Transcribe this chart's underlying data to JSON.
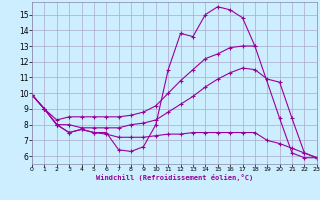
{
  "xlabel": "Windchill (Refroidissement éolien,°C)",
  "bg_color": "#cceeff",
  "grid_color": "#aaaacc",
  "line_color": "#990099",
  "xlim": [
    0,
    23
  ],
  "ylim": [
    5.5,
    15.8
  ],
  "xticks": [
    0,
    1,
    2,
    3,
    4,
    5,
    6,
    7,
    8,
    9,
    10,
    11,
    12,
    13,
    14,
    15,
    16,
    17,
    18,
    19,
    20,
    21,
    22,
    23
  ],
  "yticks": [
    6,
    7,
    8,
    9,
    10,
    11,
    12,
    13,
    14,
    15
  ],
  "series": [
    {
      "x": [
        0,
        1,
        2,
        3,
        4,
        5,
        6,
        7,
        8,
        9,
        10,
        11,
        12,
        13,
        14,
        15,
        16,
        17,
        18,
        20,
        21,
        22,
        23
      ],
      "y": [
        9.9,
        9.0,
        8.0,
        7.5,
        7.7,
        7.5,
        7.5,
        6.4,
        6.3,
        6.6,
        8.0,
        11.5,
        13.8,
        13.6,
        15.0,
        15.5,
        15.3,
        14.8,
        13.0,
        8.4,
        6.2,
        5.9,
        5.9
      ]
    },
    {
      "x": [
        0,
        1,
        2,
        3,
        4,
        5,
        6,
        7,
        8,
        9,
        10,
        11,
        12,
        13,
        14,
        15,
        16,
        17,
        18
      ],
      "y": [
        9.9,
        9.0,
        8.3,
        8.5,
        8.5,
        8.5,
        8.5,
        8.5,
        8.6,
        8.8,
        9.2,
        10.0,
        10.8,
        11.5,
        12.2,
        12.5,
        12.9,
        13.0,
        13.0
      ]
    },
    {
      "x": [
        0,
        1,
        2,
        3,
        4,
        5,
        6,
        7,
        8,
        9,
        10,
        11,
        12,
        13,
        14,
        15,
        16,
        17,
        18,
        19,
        20,
        21,
        22,
        23
      ],
      "y": [
        9.9,
        9.0,
        8.0,
        8.0,
        7.8,
        7.8,
        7.8,
        7.8,
        8.0,
        8.1,
        8.3,
        8.8,
        9.3,
        9.8,
        10.4,
        10.9,
        11.3,
        11.6,
        11.5,
        10.9,
        10.7,
        8.4,
        6.2,
        5.9
      ]
    },
    {
      "x": [
        0,
        1,
        2,
        3,
        4,
        5,
        6,
        7,
        8,
        9,
        10,
        11,
        12,
        13,
        14,
        15,
        16,
        17,
        18,
        19,
        20,
        21,
        22,
        23
      ],
      "y": [
        9.9,
        9.0,
        8.0,
        7.5,
        7.7,
        7.5,
        7.4,
        7.2,
        7.2,
        7.2,
        7.3,
        7.4,
        7.4,
        7.5,
        7.5,
        7.5,
        7.5,
        7.5,
        7.5,
        7.0,
        6.8,
        6.5,
        6.2,
        5.9
      ]
    }
  ]
}
